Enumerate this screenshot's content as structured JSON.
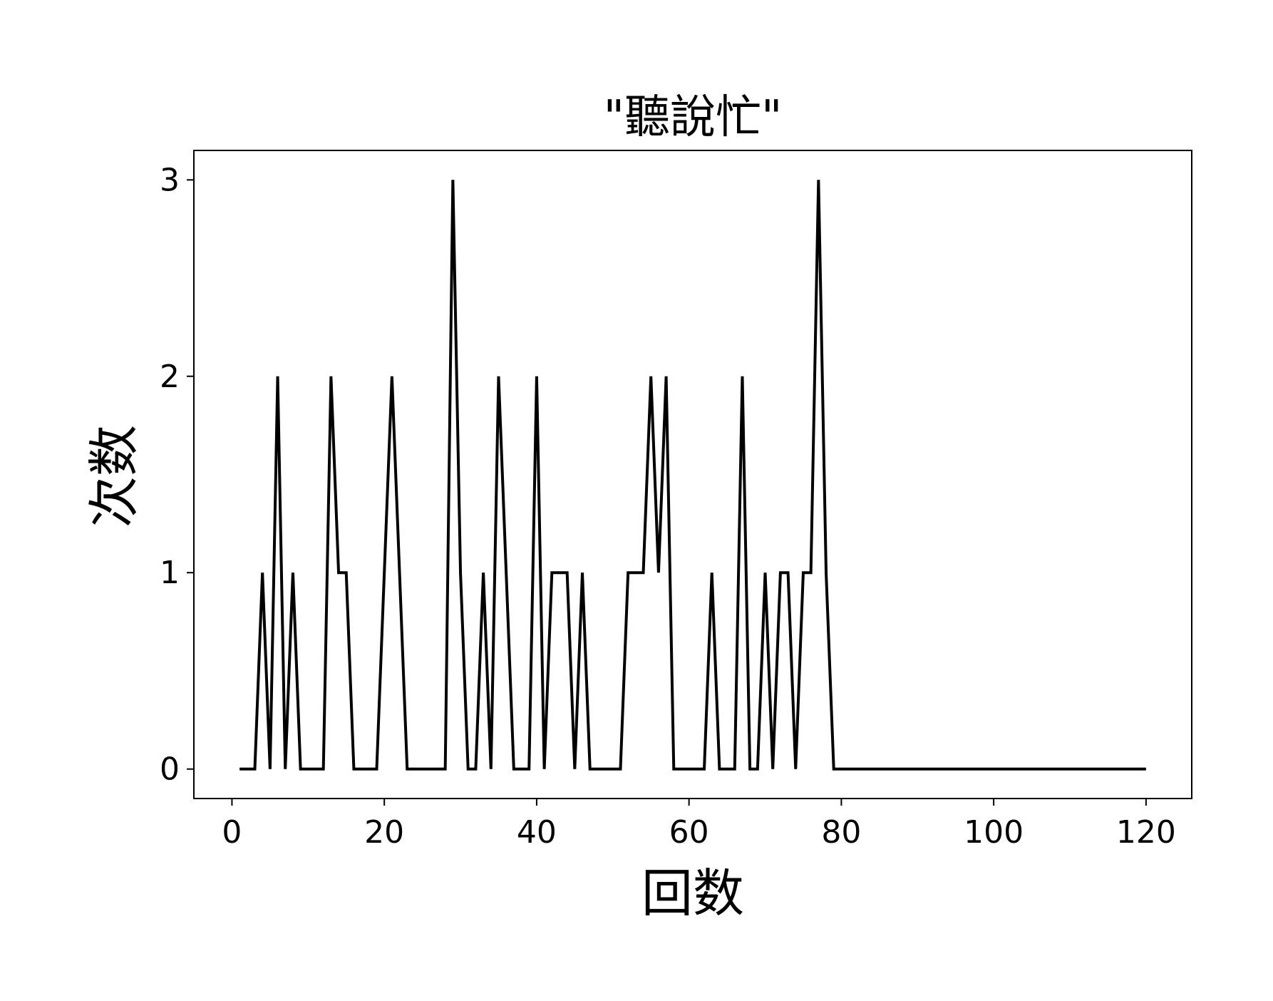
{
  "chart_data": {
    "type": "line",
    "title": "\"聽說忙\"",
    "xlabel": "回数",
    "ylabel": "次数",
    "xlim": [
      -5,
      126
    ],
    "ylim": [
      -0.15,
      3.15
    ],
    "xticks": [
      0,
      20,
      40,
      60,
      80,
      100,
      120
    ],
    "yticks": [
      0,
      1,
      2,
      3
    ],
    "grid": false,
    "series": [
      {
        "color": "#000000",
        "x": [
          1,
          2,
          3,
          4,
          5,
          6,
          7,
          8,
          9,
          10,
          11,
          12,
          13,
          14,
          15,
          16,
          17,
          18,
          19,
          20,
          21,
          22,
          23,
          24,
          25,
          26,
          27,
          28,
          29,
          30,
          31,
          32,
          33,
          34,
          35,
          36,
          37,
          38,
          39,
          40,
          41,
          42,
          43,
          44,
          45,
          46,
          47,
          48,
          49,
          50,
          51,
          52,
          53,
          54,
          55,
          56,
          57,
          58,
          59,
          60,
          61,
          62,
          63,
          64,
          65,
          66,
          67,
          68,
          69,
          70,
          71,
          72,
          73,
          74,
          75,
          76,
          77,
          78,
          79,
          80,
          81,
          82,
          83,
          84,
          85,
          86,
          87,
          88,
          89,
          90,
          91,
          92,
          93,
          94,
          95,
          96,
          97,
          98,
          99,
          100,
          101,
          102,
          103,
          104,
          105,
          106,
          107,
          108,
          109,
          110,
          111,
          112,
          113,
          114,
          115,
          116,
          117,
          118,
          119,
          120
        ],
        "y": [
          0,
          0,
          0,
          1,
          0,
          2,
          0,
          1,
          0,
          0,
          0,
          0,
          2,
          1,
          1,
          0,
          0,
          0,
          0,
          1,
          2,
          1,
          0,
          0,
          0,
          0,
          0,
          0,
          3,
          1,
          0,
          0,
          1,
          0,
          2,
          1,
          0,
          0,
          0,
          2,
          0,
          1,
          1,
          1,
          0,
          1,
          0,
          0,
          0,
          0,
          0,
          1,
          1,
          1,
          2,
          1,
          2,
          0,
          0,
          0,
          0,
          0,
          1,
          0,
          0,
          0,
          2,
          0,
          0,
          1,
          0,
          1,
          1,
          0,
          1,
          1,
          3,
          1,
          0,
          0,
          0,
          0,
          0,
          0,
          0,
          0,
          0,
          0,
          0,
          0,
          0,
          0,
          0,
          0,
          0,
          0,
          0,
          0,
          0,
          0,
          0,
          0,
          0,
          0,
          0,
          0,
          0,
          0,
          0,
          0,
          0,
          0,
          0,
          0,
          0,
          0,
          0,
          0,
          0,
          0
        ]
      }
    ]
  }
}
